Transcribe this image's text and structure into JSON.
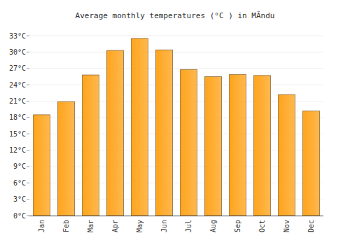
{
  "chart_data": {
    "type": "bar",
    "title": "Average monthly temperatures (°C ) in MĂndu",
    "categories": [
      "Jan",
      "Feb",
      "Mar",
      "Apr",
      "May",
      "Jun",
      "Jul",
      "Aug",
      "Sep",
      "Oct",
      "Nov",
      "Dec"
    ],
    "values": [
      18.5,
      20.9,
      25.8,
      30.3,
      32.5,
      30.4,
      26.8,
      25.5,
      25.9,
      25.7,
      22.2,
      19.2
    ],
    "color": "#ffa41c",
    "ylim": [
      0,
      33
    ],
    "yticks": [
      {
        "value": 0,
        "label": "0°C"
      },
      {
        "value": 3,
        "label": "3°C"
      },
      {
        "value": 6,
        "label": "6°C"
      },
      {
        "value": 9,
        "label": "9°C"
      },
      {
        "value": 12,
        "label": "12°C"
      },
      {
        "value": 15,
        "label": "15°C"
      },
      {
        "value": 18,
        "label": "18°C"
      },
      {
        "value": 21,
        "label": "21°C"
      },
      {
        "value": 24,
        "label": "24°C"
      },
      {
        "value": 27,
        "label": "27°C"
      },
      {
        "value": 30,
        "label": "30°C"
      },
      {
        "value": 33,
        "label": "33°C"
      }
    ],
    "grid": true
  }
}
